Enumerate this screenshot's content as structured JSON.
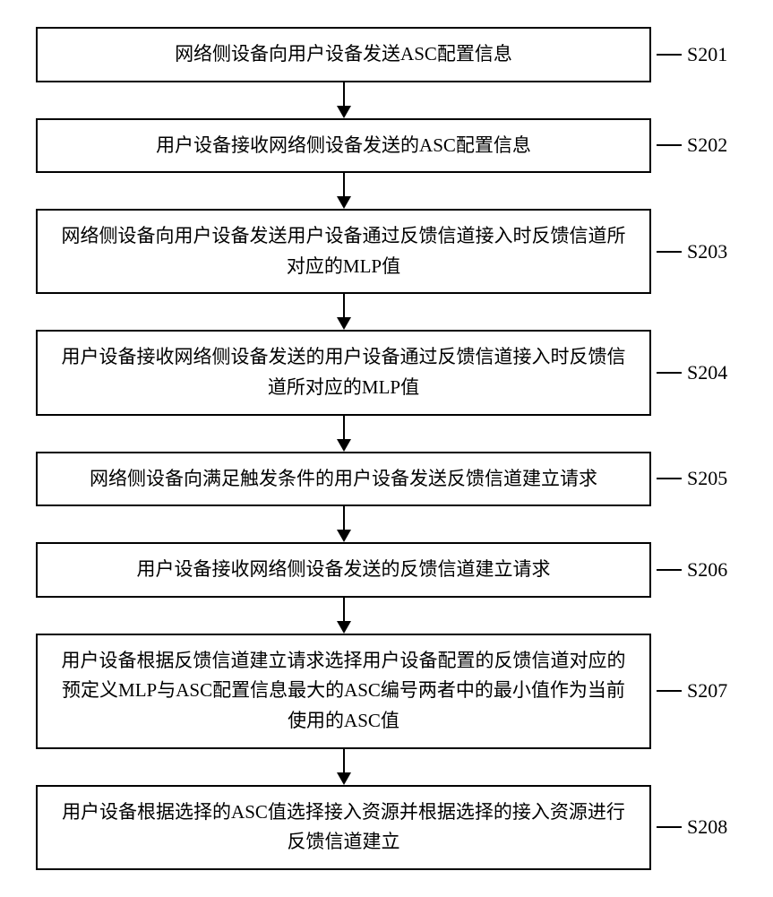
{
  "flowchart": {
    "type": "flowchart",
    "background_color": "#ffffff",
    "box_border_color": "#000000",
    "box_border_width": 2,
    "arrow_color": "#000000",
    "font_family": "SimSun",
    "font_size": 21,
    "label_font_size": 22,
    "steps": [
      {
        "id": "S201",
        "text": "网络侧设备向用户设备发送ASC配置信息",
        "lines": 1
      },
      {
        "id": "S202",
        "text": "用户设备接收网络侧设备发送的ASC配置信息",
        "lines": 1
      },
      {
        "id": "S203",
        "text": "网络侧设备向用户设备发送用户设备通过反馈信道接入时反馈信道所对应的MLP值",
        "lines": 2
      },
      {
        "id": "S204",
        "text": "用户设备接收网络侧设备发送的用户设备通过反馈信道接入时反馈信道所对应的MLP值",
        "lines": 2
      },
      {
        "id": "S205",
        "text": "网络侧设备向满足触发条件的用户设备发送反馈信道建立请求",
        "lines": 1
      },
      {
        "id": "S206",
        "text": "用户设备接收网络侧设备发送的反馈信道建立请求",
        "lines": 1
      },
      {
        "id": "S207",
        "text": "用户设备根据反馈信道建立请求选择用户设备配置的反馈信道对应的预定义MLP与ASC配置信息最大的ASC编号两者中的最小值作为当前使用的ASC值",
        "lines": 3
      },
      {
        "id": "S208",
        "text": "用户设备根据选择的ASC值选择接入资源并根据选择的接入资源进行反馈信道建立",
        "lines": 2
      }
    ]
  }
}
